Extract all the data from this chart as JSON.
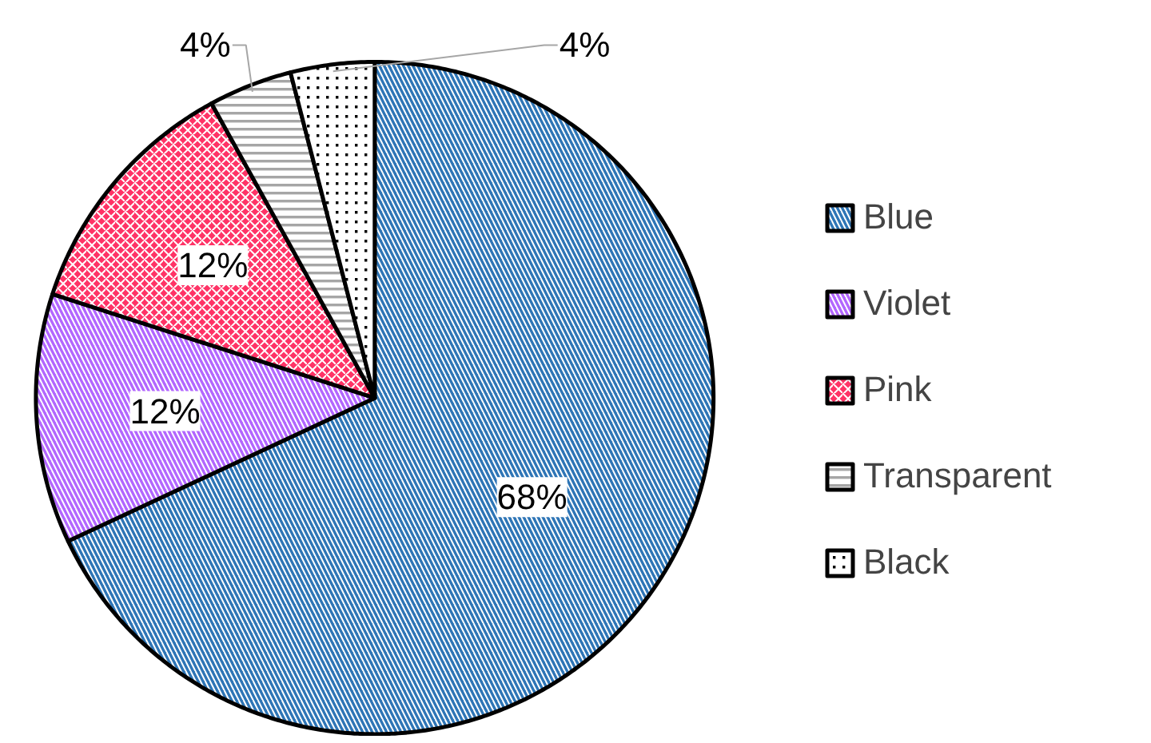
{
  "chart_data": {
    "type": "pie",
    "categories": [
      "Blue",
      "Violet",
      "Pink",
      "Transparent",
      "Black"
    ],
    "values": [
      68,
      12,
      12,
      4,
      4
    ],
    "colors": [
      "#2e75b6",
      "#b266ff",
      "#ff3366",
      "#a6a6a6",
      "#000000"
    ],
    "value_labels": [
      "68%",
      "12%",
      "12%",
      "4%",
      "4%"
    ],
    "legend": "right"
  }
}
